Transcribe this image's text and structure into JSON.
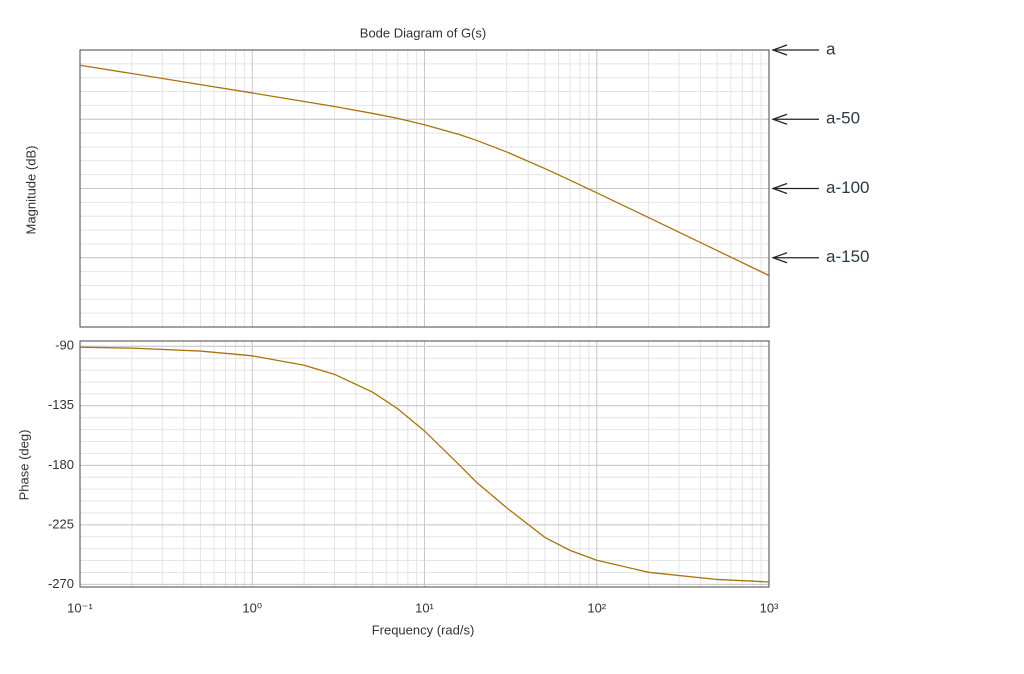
{
  "chart_data": [
    {
      "type": "line",
      "title": "Bode Diagram of G(s)",
      "ylabel": "Magnitude (dB)",
      "x": [
        0.1,
        0.2,
        0.5,
        1,
        2,
        3,
        5,
        7,
        10,
        16,
        20,
        30,
        50,
        70,
        100,
        200,
        500,
        1000
      ],
      "series": [
        {
          "color": "#a8740a",
          "values": [
            -11.0,
            -17.0,
            -25.0,
            -31.0,
            -37.2,
            -40.8,
            -45.8,
            -49.4,
            -54.0,
            -61.1,
            -65.2,
            -73.6,
            -85.6,
            -94.0,
            -103.1,
            -121.0,
            -144.8,
            -162.8
          ]
        }
      ],
      "xlim": [
        0.1,
        1000
      ],
      "xscale": "log",
      "ylim": [
        -200,
        0
      ],
      "yticks": [
        {
          "value": 0,
          "label": "a"
        },
        {
          "value": -50,
          "label": "a-50"
        },
        {
          "value": -100,
          "label": "a-100"
        },
        {
          "value": -150,
          "label": "a-150"
        }
      ],
      "grid": true
    },
    {
      "type": "line",
      "ylabel": "Phase (deg)",
      "xlabel": "Frequency  (rad/s)",
      "x": [
        0.1,
        0.2,
        0.5,
        1,
        2,
        3,
        5,
        7,
        10,
        16,
        20,
        30,
        50,
        70,
        100,
        200,
        500,
        1000
      ],
      "series": [
        {
          "color": "#a8740a",
          "values": [
            -90.7,
            -91.4,
            -93.6,
            -97.2,
            -104.3,
            -111.2,
            -124.7,
            -137.3,
            -154.0,
            -180,
            -192.7,
            -212.1,
            -234.5,
            -244.3,
            -251.8,
            -260.9,
            -266.3,
            -268.2
          ]
        }
      ],
      "xlim": [
        0.1,
        1000
      ],
      "xscale": "log",
      "ylim": [
        -272,
        -86
      ],
      "xticks": [
        {
          "value": 0.1,
          "label": "10⁻¹"
        },
        {
          "value": 1,
          "label": "10⁰"
        },
        {
          "value": 10,
          "label": "10¹"
        },
        {
          "value": 100,
          "label": "10²"
        },
        {
          "value": 1000,
          "label": "10³"
        }
      ],
      "yticks": [
        -90,
        -135,
        -180,
        -225,
        -270
      ],
      "grid": true
    }
  ]
}
